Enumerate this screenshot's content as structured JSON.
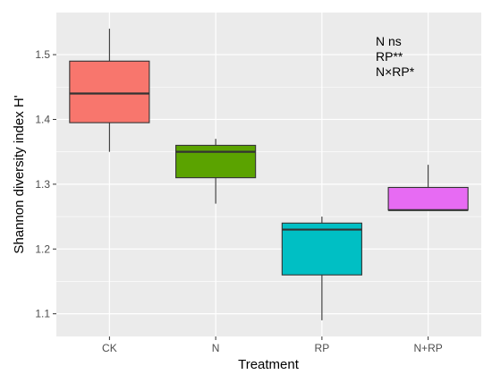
{
  "chart_data": {
    "type": "box",
    "title": "",
    "xlabel": "Treatment",
    "ylabel": "Shannon diversity index H'",
    "ylim": [
      1.065,
      1.565
    ],
    "y_ticks": [
      "1.1",
      "1.2",
      "1.3",
      "1.4",
      "1.5"
    ],
    "y_tick_values": [
      1.1,
      1.2,
      1.3,
      1.4,
      1.5
    ],
    "grid": true,
    "legend": "none",
    "categories": [
      "CK",
      "N",
      "RP",
      "N+RP"
    ],
    "boxes": [
      {
        "category": "CK",
        "min": 1.35,
        "q1": 1.395,
        "median": 1.44,
        "q3": 1.49,
        "max": 1.54,
        "color": "#F8766D"
      },
      {
        "category": "N",
        "min": 1.27,
        "q1": 1.31,
        "median": 1.35,
        "q3": 1.36,
        "max": 1.37,
        "color": "#5BA300"
      },
      {
        "category": "RP",
        "min": 1.09,
        "q1": 1.16,
        "median": 1.23,
        "q3": 1.24,
        "max": 1.25,
        "color": "#00BFC4"
      },
      {
        "category": "N+RP",
        "min": 1.26,
        "q1": 1.26,
        "median": 1.26,
        "q3": 1.295,
        "max": 1.33,
        "color": "#E76BF3"
      }
    ],
    "annotations": [
      "N ns",
      "RP**",
      "N×RP*"
    ],
    "panel_color": "#EBEBEB",
    "grid_color": "#FFFFFF"
  }
}
